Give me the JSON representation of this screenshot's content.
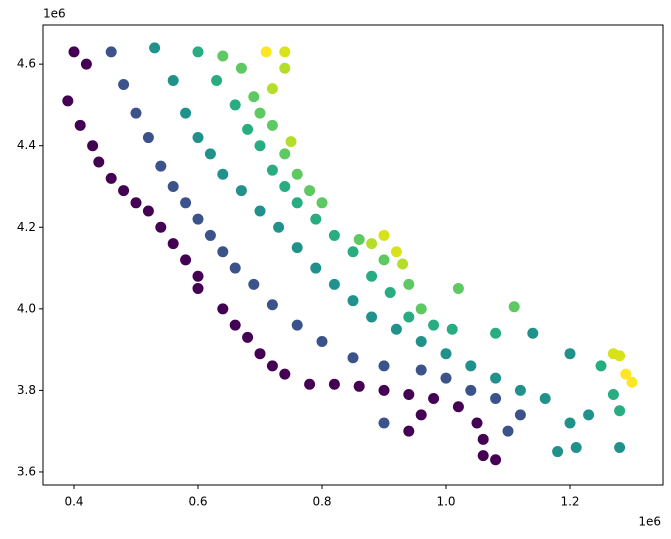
{
  "chart_data": {
    "type": "scatter",
    "x_offset_label": "1e6",
    "y_offset_label": "1e6",
    "xlim": [
      350000,
      1350000
    ],
    "ylim": [
      3568000,
      4696000
    ],
    "xticks": [
      {
        "value": 400000,
        "label": "0.4"
      },
      {
        "value": 600000,
        "label": "0.6"
      },
      {
        "value": 800000,
        "label": "0.8"
      },
      {
        "value": 1000000,
        "label": "1.0"
      },
      {
        "value": 1200000,
        "label": "1.2"
      }
    ],
    "yticks": [
      {
        "value": 3600000,
        "label": "3.6"
      },
      {
        "value": 3800000,
        "label": "3.8"
      },
      {
        "value": 4000000,
        "label": "4.0"
      },
      {
        "value": 4200000,
        "label": "4.2"
      },
      {
        "value": 4400000,
        "label": "4.4"
      },
      {
        "value": 4600000,
        "label": "4.6"
      }
    ],
    "points": {
      "x": [
        400000,
        420000,
        390000,
        410000,
        430000,
        440000,
        460000,
        480000,
        500000,
        520000,
        540000,
        560000,
        580000,
        600000,
        600000,
        640000,
        660000,
        680000,
        700000,
        720000,
        740000,
        780000,
        820000,
        860000,
        900000,
        940000,
        980000,
        1020000,
        1050000,
        1060000,
        1060000,
        1080000,
        940000,
        960000,
        460000,
        480000,
        500000,
        520000,
        540000,
        560000,
        580000,
        600000,
        620000,
        640000,
        660000,
        690000,
        720000,
        760000,
        800000,
        850000,
        900000,
        960000,
        1000000,
        1040000,
        1080000,
        1120000,
        1100000,
        900000,
        530000,
        560000,
        580000,
        600000,
        620000,
        640000,
        670000,
        700000,
        730000,
        760000,
        790000,
        820000,
        850000,
        880000,
        920000,
        960000,
        1000000,
        1040000,
        1080000,
        1120000,
        1160000,
        1200000,
        1210000,
        1180000,
        1230000,
        1280000,
        1140000,
        1200000,
        600000,
        630000,
        660000,
        680000,
        700000,
        720000,
        740000,
        760000,
        790000,
        820000,
        850000,
        880000,
        910000,
        940000,
        980000,
        1010000,
        1080000,
        1280000,
        1270000,
        1250000,
        640000,
        670000,
        690000,
        700000,
        720000,
        740000,
        760000,
        780000,
        800000,
        860000,
        900000,
        940000,
        960000,
        1020000,
        1110000,
        710000,
        740000,
        740000,
        720000,
        750000,
        880000,
        900000,
        920000,
        930000,
        1270000,
        1280000,
        1290000,
        1300000
      ],
      "y": [
        4630000,
        4600000,
        4510000,
        4450000,
        4400000,
        4360000,
        4320000,
        4290000,
        4260000,
        4240000,
        4200000,
        4160000,
        4120000,
        4080000,
        4050000,
        4000000,
        3960000,
        3930000,
        3890000,
        3860000,
        3840000,
        3815000,
        3815000,
        3810000,
        3800000,
        3790000,
        3780000,
        3760000,
        3720000,
        3680000,
        3640000,
        3630000,
        3700000,
        3740000,
        4630000,
        4550000,
        4480000,
        4420000,
        4350000,
        4300000,
        4260000,
        4220000,
        4180000,
        4140000,
        4100000,
        4060000,
        4010000,
        3960000,
        3920000,
        3880000,
        3860000,
        3850000,
        3830000,
        3800000,
        3780000,
        3740000,
        3700000,
        3720000,
        4640000,
        4560000,
        4480000,
        4420000,
        4380000,
        4330000,
        4290000,
        4240000,
        4200000,
        4150000,
        4100000,
        4060000,
        4020000,
        3980000,
        3950000,
        3920000,
        3890000,
        3860000,
        3830000,
        3800000,
        3780000,
        3720000,
        3660000,
        3650000,
        3740000,
        3660000,
        3940000,
        3890000,
        4630000,
        4560000,
        4500000,
        4440000,
        4400000,
        4340000,
        4300000,
        4260000,
        4220000,
        4180000,
        4140000,
        4080000,
        4040000,
        3980000,
        3960000,
        3950000,
        3940000,
        3750000,
        3790000,
        3860000,
        4620000,
        4590000,
        4520000,
        4480000,
        4450000,
        4380000,
        4330000,
        4290000,
        4260000,
        4170000,
        4120000,
        4060000,
        4000000,
        4050000,
        4005000,
        4630000,
        4630000,
        4590000,
        4540000,
        4410000,
        4160000,
        4180000,
        4140000,
        4110000,
        3890000,
        3885000,
        3840000,
        3820000
      ],
      "colors": [
        "#440154",
        "#440154",
        "#440154",
        "#440154",
        "#440154",
        "#440154",
        "#440154",
        "#440154",
        "#440154",
        "#440154",
        "#440154",
        "#440154",
        "#440154",
        "#440154",
        "#440154",
        "#440154",
        "#440154",
        "#440154",
        "#440154",
        "#440154",
        "#440154",
        "#440154",
        "#440154",
        "#440154",
        "#440154",
        "#440154",
        "#440154",
        "#440154",
        "#440154",
        "#440154",
        "#440154",
        "#440154",
        "#440154",
        "#440154",
        "#3b528b",
        "#3b528b",
        "#3b528b",
        "#3b528b",
        "#3b528b",
        "#3b528b",
        "#3b528b",
        "#3b528b",
        "#3b528b",
        "#3b528b",
        "#3b528b",
        "#3b528b",
        "#3b528b",
        "#3b528b",
        "#3b528b",
        "#3b528b",
        "#3b528b",
        "#3b528b",
        "#3b528b",
        "#3b528b",
        "#3b528b",
        "#3b528b",
        "#3b528b",
        "#3b528b",
        "#21918c",
        "#21918c",
        "#21918c",
        "#21918c",
        "#21918c",
        "#21918c",
        "#21918c",
        "#21918c",
        "#21918c",
        "#21918c",
        "#21918c",
        "#21918c",
        "#21918c",
        "#21918c",
        "#21918c",
        "#21918c",
        "#21918c",
        "#21918c",
        "#21918c",
        "#21918c",
        "#21918c",
        "#21918c",
        "#21918c",
        "#21918c",
        "#21918c",
        "#21918c",
        "#21918c",
        "#21918c",
        "#27ad81",
        "#27ad81",
        "#27ad81",
        "#27ad81",
        "#27ad81",
        "#27ad81",
        "#27ad81",
        "#27ad81",
        "#27ad81",
        "#27ad81",
        "#27ad81",
        "#27ad81",
        "#27ad81",
        "#27ad81",
        "#27ad81",
        "#27ad81",
        "#27ad81",
        "#27ad81",
        "#27ad81",
        "#27ad81",
        "#5ec962",
        "#5ec962",
        "#5ec962",
        "#5ec962",
        "#5ec962",
        "#5ec962",
        "#5ec962",
        "#5ec962",
        "#5ec962",
        "#5ec962",
        "#5ec962",
        "#5ec962",
        "#5ec962",
        "#5ec962",
        "#5ec962",
        "#fde725",
        "#d8e219",
        "#b5de2b",
        "#b5de2b",
        "#b5de2b",
        "#b5de2b",
        "#d8e219",
        "#d8e219",
        "#b5de2b",
        "#d8e219",
        "#d8e219",
        "#fde725",
        "#fde725"
      ]
    }
  }
}
